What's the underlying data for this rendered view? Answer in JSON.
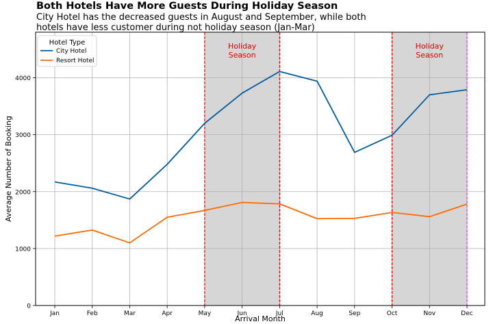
{
  "title": "Both Hotels Have More Guests During Holiday Season",
  "subtitle": "City Hotel has the decreased guests in August and September, while both hotels have less customer during not holiday season (Jan-Mar)",
  "chart_data": {
    "type": "line",
    "categories": [
      "Jan",
      "Feb",
      "Mar",
      "Apr",
      "May",
      "Jun",
      "Jul",
      "Aug",
      "Sep",
      "Oct",
      "Nov",
      "Dec"
    ],
    "series": [
      {
        "name": "City Hotel",
        "color": "#005b9f",
        "values": [
          2170,
          2060,
          1870,
          2480,
          3200,
          3730,
          4110,
          3940,
          2690,
          2990,
          3700,
          3790
        ]
      },
      {
        "name": "Resort Hotel",
        "color": "#ff6b00",
        "values": [
          1220,
          1325,
          1100,
          1550,
          1670,
          1810,
          1785,
          1525,
          1530,
          1635,
          1560,
          1780
        ]
      }
    ],
    "xlabel": "Arrival Month",
    "ylabel": "Average Number of Booking",
    "ylim": [
      0,
      4800
    ],
    "yticks": [
      0,
      1000,
      2000,
      3000,
      4000
    ],
    "grid": true,
    "legend": {
      "title": "Hotel Type",
      "placement": "top-left"
    },
    "shaded_regions": [
      {
        "from": "May",
        "to": "Jul",
        "label": [
          "Holiday",
          "Season"
        ]
      },
      {
        "from": "Oct",
        "to": "Dec",
        "label": [
          "Holiday",
          "Season"
        ]
      }
    ],
    "vlines": [
      {
        "at": "May",
        "color": "#cc0000"
      },
      {
        "at": "Jul",
        "color": "#cc0000"
      },
      {
        "at": "Oct",
        "color": "#cc0000"
      },
      {
        "at": "Dec",
        "color": "#d62ad6"
      }
    ],
    "annotation_color": "#e00000"
  }
}
